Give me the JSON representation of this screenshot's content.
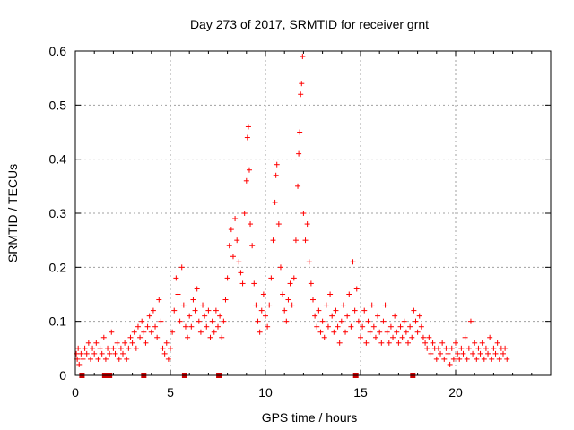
{
  "chart_data": {
    "type": "scatter",
    "title": "Day 273 of 2017, SRMTID for receiver grnt",
    "xlabel": "GPS time / hours",
    "ylabel": "SRMTID / TECUs",
    "xlim": [
      0,
      25
    ],
    "ylim": [
      0,
      0.6
    ],
    "x_ticks": [
      0,
      5,
      10,
      15,
      20
    ],
    "y_ticks": [
      0,
      0.1,
      0.2,
      0.3,
      0.4,
      0.5,
      0.6
    ],
    "x_tick_labels": [
      "0",
      "5",
      "10",
      "15",
      "20"
    ],
    "y_tick_labels": [
      "0",
      "0.1",
      "0.2",
      "0.3",
      "0.4",
      "0.5",
      "0.6"
    ],
    "grid": true,
    "point_color": "#ff0000",
    "marker_color": "#cc0000",
    "zero_markers_x": [
      0.35,
      1.55,
      1.8,
      3.6,
      5.75,
      7.55,
      14.75,
      17.75
    ],
    "series": [
      {
        "name": "SRMTID",
        "points": [
          [
            0.05,
            0.04
          ],
          [
            0.1,
            0.03
          ],
          [
            0.15,
            0.05
          ],
          [
            0.2,
            0.02
          ],
          [
            0.3,
            0.04
          ],
          [
            0.4,
            0.03
          ],
          [
            0.5,
            0.05
          ],
          [
            0.6,
            0.04
          ],
          [
            0.7,
            0.06
          ],
          [
            0.8,
            0.03
          ],
          [
            0.9,
            0.05
          ],
          [
            1.0,
            0.04
          ],
          [
            1.1,
            0.06
          ],
          [
            1.2,
            0.03
          ],
          [
            1.3,
            0.05
          ],
          [
            1.4,
            0.04
          ],
          [
            1.5,
            0.07
          ],
          [
            1.6,
            0.03
          ],
          [
            1.7,
            0.05
          ],
          [
            1.8,
            0.04
          ],
          [
            1.9,
            0.08
          ],
          [
            2.0,
            0.05
          ],
          [
            2.1,
            0.04
          ],
          [
            2.2,
            0.06
          ],
          [
            2.3,
            0.03
          ],
          [
            2.4,
            0.05
          ],
          [
            2.5,
            0.04
          ],
          [
            2.6,
            0.06
          ],
          [
            2.7,
            0.03
          ],
          [
            2.8,
            0.05
          ],
          [
            2.9,
            0.07
          ],
          [
            3.0,
            0.06
          ],
          [
            3.1,
            0.08
          ],
          [
            3.2,
            0.05
          ],
          [
            3.3,
            0.09
          ],
          [
            3.4,
            0.07
          ],
          [
            3.5,
            0.1
          ],
          [
            3.6,
            0.08
          ],
          [
            3.7,
            0.06
          ],
          [
            3.8,
            0.09
          ],
          [
            3.9,
            0.11
          ],
          [
            4.0,
            0.08
          ],
          [
            4.1,
            0.12
          ],
          [
            4.2,
            0.09
          ],
          [
            4.3,
            0.07
          ],
          [
            4.4,
            0.14
          ],
          [
            4.5,
            0.1
          ],
          [
            4.6,
            0.05
          ],
          [
            4.7,
            0.04
          ],
          [
            4.8,
            0.06
          ],
          [
            4.9,
            0.03
          ],
          [
            5.0,
            0.05
          ],
          [
            5.1,
            0.08
          ],
          [
            5.2,
            0.12
          ],
          [
            5.3,
            0.18
          ],
          [
            5.4,
            0.15
          ],
          [
            5.5,
            0.1
          ],
          [
            5.6,
            0.2
          ],
          [
            5.7,
            0.13
          ],
          [
            5.8,
            0.09
          ],
          [
            5.9,
            0.07
          ],
          [
            6.0,
            0.11
          ],
          [
            6.1,
            0.09
          ],
          [
            6.2,
            0.14
          ],
          [
            6.3,
            0.12
          ],
          [
            6.4,
            0.16
          ],
          [
            6.5,
            0.1
          ],
          [
            6.6,
            0.08
          ],
          [
            6.7,
            0.13
          ],
          [
            6.8,
            0.11
          ],
          [
            6.9,
            0.09
          ],
          [
            7.0,
            0.12
          ],
          [
            7.1,
            0.07
          ],
          [
            7.2,
            0.1
          ],
          [
            7.3,
            0.08
          ],
          [
            7.4,
            0.12
          ],
          [
            7.5,
            0.09
          ],
          [
            7.6,
            0.11
          ],
          [
            7.7,
            0.07
          ],
          [
            7.8,
            0.1
          ],
          [
            7.9,
            0.14
          ],
          [
            8.0,
            0.18
          ],
          [
            8.1,
            0.24
          ],
          [
            8.2,
            0.27
          ],
          [
            8.3,
            0.22
          ],
          [
            8.4,
            0.29
          ],
          [
            8.5,
            0.25
          ],
          [
            8.6,
            0.21
          ],
          [
            8.7,
            0.19
          ],
          [
            8.8,
            0.17
          ],
          [
            8.9,
            0.3
          ],
          [
            9.0,
            0.36
          ],
          [
            9.05,
            0.44
          ],
          [
            9.1,
            0.46
          ],
          [
            9.15,
            0.38
          ],
          [
            9.2,
            0.28
          ],
          [
            9.3,
            0.24
          ],
          [
            9.4,
            0.17
          ],
          [
            9.5,
            0.13
          ],
          [
            9.6,
            0.1
          ],
          [
            9.7,
            0.08
          ],
          [
            9.8,
            0.12
          ],
          [
            9.9,
            0.15
          ],
          [
            10.0,
            0.11
          ],
          [
            10.1,
            0.09
          ],
          [
            10.2,
            0.13
          ],
          [
            10.3,
            0.18
          ],
          [
            10.4,
            0.25
          ],
          [
            10.5,
            0.32
          ],
          [
            10.55,
            0.37
          ],
          [
            10.6,
            0.39
          ],
          [
            10.7,
            0.28
          ],
          [
            10.8,
            0.2
          ],
          [
            10.9,
            0.15
          ],
          [
            11.0,
            0.12
          ],
          [
            11.1,
            0.1
          ],
          [
            11.2,
            0.14
          ],
          [
            11.3,
            0.17
          ],
          [
            11.4,
            0.13
          ],
          [
            11.5,
            0.18
          ],
          [
            11.6,
            0.25
          ],
          [
            11.7,
            0.35
          ],
          [
            11.75,
            0.41
          ],
          [
            11.8,
            0.45
          ],
          [
            11.85,
            0.52
          ],
          [
            11.9,
            0.54
          ],
          [
            11.95,
            0.59
          ],
          [
            12.0,
            0.3
          ],
          [
            12.1,
            0.25
          ],
          [
            12.2,
            0.28
          ],
          [
            12.3,
            0.21
          ],
          [
            12.4,
            0.17
          ],
          [
            12.5,
            0.14
          ],
          [
            12.6,
            0.11
          ],
          [
            12.7,
            0.09
          ],
          [
            12.8,
            0.12
          ],
          [
            12.9,
            0.08
          ],
          [
            13.0,
            0.1
          ],
          [
            13.1,
            0.07
          ],
          [
            13.2,
            0.13
          ],
          [
            13.3,
            0.09
          ],
          [
            13.4,
            0.15
          ],
          [
            13.5,
            0.11
          ],
          [
            13.6,
            0.08
          ],
          [
            13.7,
            0.12
          ],
          [
            13.8,
            0.09
          ],
          [
            13.9,
            0.06
          ],
          [
            14.0,
            0.1
          ],
          [
            14.1,
            0.13
          ],
          [
            14.2,
            0.08
          ],
          [
            14.3,
            0.11
          ],
          [
            14.4,
            0.15
          ],
          [
            14.5,
            0.09
          ],
          [
            14.6,
            0.21
          ],
          [
            14.7,
            0.12
          ],
          [
            14.8,
            0.16
          ],
          [
            14.9,
            0.1
          ],
          [
            15.0,
            0.07
          ],
          [
            15.1,
            0.09
          ],
          [
            15.2,
            0.12
          ],
          [
            15.3,
            0.06
          ],
          [
            15.4,
            0.1
          ],
          [
            15.5,
            0.08
          ],
          [
            15.6,
            0.13
          ],
          [
            15.7,
            0.09
          ],
          [
            15.8,
            0.07
          ],
          [
            15.9,
            0.11
          ],
          [
            16.0,
            0.08
          ],
          [
            16.1,
            0.06
          ],
          [
            16.2,
            0.1
          ],
          [
            16.3,
            0.13
          ],
          [
            16.4,
            0.08
          ],
          [
            16.5,
            0.06
          ],
          [
            16.6,
            0.09
          ],
          [
            16.7,
            0.07
          ],
          [
            16.8,
            0.11
          ],
          [
            16.9,
            0.08
          ],
          [
            17.0,
            0.06
          ],
          [
            17.1,
            0.09
          ],
          [
            17.2,
            0.07
          ],
          [
            17.3,
            0.1
          ],
          [
            17.4,
            0.08
          ],
          [
            17.5,
            0.06
          ],
          [
            17.6,
            0.09
          ],
          [
            17.7,
            0.07
          ],
          [
            17.8,
            0.12
          ],
          [
            17.9,
            0.1
          ],
          [
            18.0,
            0.08
          ],
          [
            18.1,
            0.11
          ],
          [
            18.2,
            0.09
          ],
          [
            18.3,
            0.07
          ],
          [
            18.4,
            0.06
          ],
          [
            18.5,
            0.05
          ],
          [
            18.6,
            0.07
          ],
          [
            18.7,
            0.04
          ],
          [
            18.8,
            0.06
          ],
          [
            18.9,
            0.05
          ],
          [
            19.0,
            0.03
          ],
          [
            19.1,
            0.05
          ],
          [
            19.2,
            0.04
          ],
          [
            19.3,
            0.06
          ],
          [
            19.4,
            0.03
          ],
          [
            19.5,
            0.05
          ],
          [
            19.6,
            0.04
          ],
          [
            19.7,
            0.02
          ],
          [
            19.8,
            0.05
          ],
          [
            19.9,
            0.03
          ],
          [
            20.0,
            0.06
          ],
          [
            20.1,
            0.04
          ],
          [
            20.2,
            0.03
          ],
          [
            20.3,
            0.05
          ],
          [
            20.4,
            0.04
          ],
          [
            20.5,
            0.07
          ],
          [
            20.6,
            0.03
          ],
          [
            20.7,
            0.05
          ],
          [
            20.8,
            0.1
          ],
          [
            20.9,
            0.04
          ],
          [
            21.0,
            0.06
          ],
          [
            21.1,
            0.03
          ],
          [
            21.2,
            0.05
          ],
          [
            21.3,
            0.04
          ],
          [
            21.4,
            0.06
          ],
          [
            21.5,
            0.03
          ],
          [
            21.6,
            0.05
          ],
          [
            21.7,
            0.04
          ],
          [
            21.8,
            0.07
          ],
          [
            21.9,
            0.03
          ],
          [
            22.0,
            0.05
          ],
          [
            22.1,
            0.04
          ],
          [
            22.2,
            0.06
          ],
          [
            22.3,
            0.03
          ],
          [
            22.4,
            0.05
          ],
          [
            22.5,
            0.04
          ],
          [
            22.6,
            0.05
          ],
          [
            22.7,
            0.03
          ]
        ]
      }
    ]
  }
}
